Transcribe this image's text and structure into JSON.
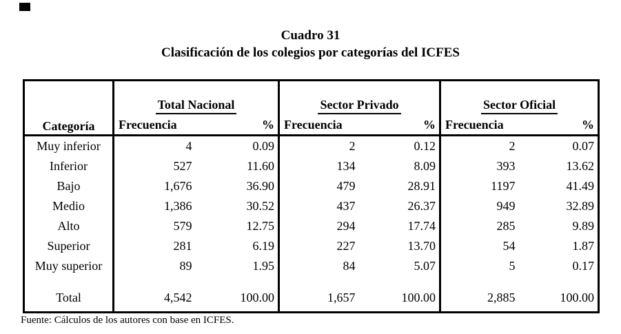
{
  "colors": {
    "ink": "#000000",
    "paper": "#ffffff"
  },
  "title": {
    "line1": "Cuadro 31",
    "line2": "Clasificación de los colegios por categorías del ICFES"
  },
  "table": {
    "category_header": "Categoría",
    "groups": [
      {
        "title": "Total Nacional",
        "freq_label": "Frecuencia",
        "pct_label": "%"
      },
      {
        "title": "Sector Privado",
        "freq_label": "Frecuencia",
        "pct_label": "%"
      },
      {
        "title": "Sector Oficial",
        "freq_label": "Frecuencia",
        "pct_label": "%"
      }
    ],
    "rows": [
      {
        "category": "Muy inferior",
        "national": {
          "freq": "4",
          "pct": "0.09"
        },
        "private": {
          "freq": "2",
          "pct": "0.12"
        },
        "official": {
          "freq": "2",
          "pct": "0.07"
        }
      },
      {
        "category": "Inferior",
        "national": {
          "freq": "527",
          "pct": "11.60"
        },
        "private": {
          "freq": "134",
          "pct": "8.09"
        },
        "official": {
          "freq": "393",
          "pct": "13.62"
        }
      },
      {
        "category": "Bajo",
        "national": {
          "freq": "1,676",
          "pct": "36.90"
        },
        "private": {
          "freq": "479",
          "pct": "28.91"
        },
        "official": {
          "freq": "1197",
          "pct": "41.49"
        }
      },
      {
        "category": "Medio",
        "national": {
          "freq": "1,386",
          "pct": "30.52"
        },
        "private": {
          "freq": "437",
          "pct": "26.37"
        },
        "official": {
          "freq": "949",
          "pct": "32.89"
        }
      },
      {
        "category": "Alto",
        "national": {
          "freq": "579",
          "pct": "12.75"
        },
        "private": {
          "freq": "294",
          "pct": "17.74"
        },
        "official": {
          "freq": "285",
          "pct": "9.89"
        }
      },
      {
        "category": "Superior",
        "national": {
          "freq": "281",
          "pct": "6.19"
        },
        "private": {
          "freq": "227",
          "pct": "13.70"
        },
        "official": {
          "freq": "54",
          "pct": "1.87"
        }
      },
      {
        "category": "Muy superior",
        "national": {
          "freq": "89",
          "pct": "1.95"
        },
        "private": {
          "freq": "84",
          "pct": "5.07"
        },
        "official": {
          "freq": "5",
          "pct": "0.17"
        }
      }
    ],
    "total": {
      "label": "Total",
      "national": {
        "freq": "4,542",
        "pct": "100.00"
      },
      "private": {
        "freq": "1,657",
        "pct": "100.00"
      },
      "official": {
        "freq": "2,885",
        "pct": "100.00"
      }
    }
  },
  "footer": {
    "source": "Fuente: Cálculos de los autores con base en ICFES."
  }
}
